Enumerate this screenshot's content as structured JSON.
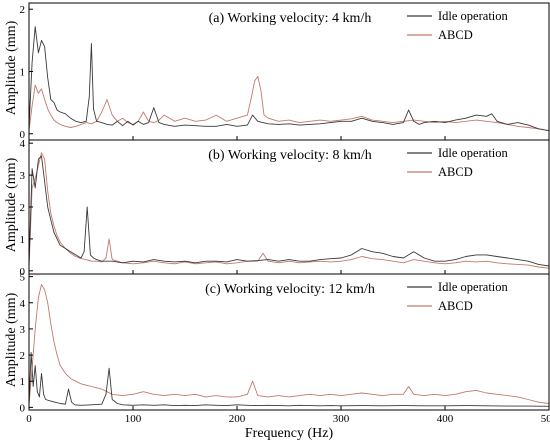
{
  "chart_data": [
    {
      "type": "line",
      "title": "(a) Working velocity: 4 km/h",
      "ylabel": "Amplitude (mm)",
      "xlabel": "",
      "xlim": [
        0,
        500
      ],
      "ylim": [
        -0.1,
        2.1
      ],
      "x_ticks": [
        0,
        100,
        200,
        300,
        400,
        500
      ],
      "y_ticks": [
        0,
        1,
        2
      ],
      "legend_position": "top-right",
      "grid": false,
      "series": [
        {
          "name": "Idle operation",
          "color": "#3a3a3a",
          "x": [
            0,
            3,
            6,
            9,
            12,
            15,
            18,
            21,
            24,
            27,
            30,
            35,
            40,
            45,
            50,
            55,
            58,
            60,
            62,
            65,
            70,
            75,
            80,
            85,
            90,
            95,
            100,
            105,
            110,
            115,
            120,
            125,
            130,
            140,
            150,
            160,
            170,
            180,
            190,
            200,
            210,
            215,
            220,
            225,
            230,
            240,
            250,
            260,
            270,
            280,
            290,
            300,
            310,
            320,
            330,
            340,
            350,
            360,
            365,
            370,
            375,
            380,
            390,
            400,
            410,
            420,
            430,
            440,
            445,
            450,
            460,
            470,
            480,
            490,
            500
          ],
          "y": [
            0.1,
            1.15,
            1.72,
            1.3,
            1.5,
            1.4,
            0.9,
            0.55,
            0.5,
            0.38,
            0.35,
            0.32,
            0.25,
            0.2,
            0.18,
            0.2,
            0.6,
            1.45,
            0.4,
            0.2,
            0.18,
            0.15,
            0.14,
            0.2,
            0.13,
            0.2,
            0.14,
            0.2,
            0.15,
            0.18,
            0.42,
            0.18,
            0.15,
            0.12,
            0.14,
            0.13,
            0.12,
            0.12,
            0.15,
            0.12,
            0.14,
            0.3,
            0.2,
            0.18,
            0.16,
            0.15,
            0.16,
            0.14,
            0.15,
            0.16,
            0.18,
            0.2,
            0.2,
            0.25,
            0.2,
            0.18,
            0.15,
            0.18,
            0.38,
            0.2,
            0.15,
            0.18,
            0.2,
            0.18,
            0.22,
            0.25,
            0.3,
            0.28,
            0.32,
            0.2,
            0.15,
            0.18,
            0.14,
            0.08,
            0.05
          ]
        },
        {
          "name": "ABCD",
          "color": "#c4796a",
          "x": [
            0,
            3,
            6,
            9,
            12,
            15,
            18,
            21,
            24,
            27,
            30,
            35,
            40,
            45,
            50,
            55,
            60,
            65,
            70,
            75,
            80,
            85,
            90,
            95,
            100,
            105,
            110,
            115,
            120,
            125,
            130,
            140,
            150,
            160,
            170,
            180,
            190,
            200,
            210,
            214,
            217,
            220,
            223,
            226,
            230,
            240,
            250,
            260,
            270,
            280,
            290,
            300,
            310,
            320,
            330,
            340,
            350,
            360,
            370,
            380,
            390,
            400,
            410,
            420,
            430,
            440,
            450,
            460,
            470,
            480,
            490,
            500
          ],
          "y": [
            0.05,
            0.45,
            0.78,
            0.65,
            0.72,
            0.55,
            0.4,
            0.3,
            0.22,
            0.18,
            0.15,
            0.12,
            0.1,
            0.12,
            0.15,
            0.18,
            0.16,
            0.2,
            0.35,
            0.55,
            0.3,
            0.2,
            0.25,
            0.18,
            0.15,
            0.2,
            0.35,
            0.2,
            0.18,
            0.22,
            0.3,
            0.2,
            0.25,
            0.2,
            0.22,
            0.3,
            0.2,
            0.25,
            0.3,
            0.6,
            0.85,
            0.92,
            0.7,
            0.3,
            0.25,
            0.2,
            0.22,
            0.18,
            0.2,
            0.22,
            0.2,
            0.22,
            0.24,
            0.28,
            0.22,
            0.2,
            0.18,
            0.2,
            0.22,
            0.2,
            0.18,
            0.2,
            0.18,
            0.2,
            0.22,
            0.2,
            0.18,
            0.15,
            0.12,
            0.1,
            0.08,
            0.05
          ]
        }
      ]
    },
    {
      "type": "line",
      "title": "(b) Working velocity: 8 km/h",
      "ylabel": "Amplitude (mm)",
      "xlabel": "",
      "xlim": [
        0,
        500
      ],
      "ylim": [
        -0.1,
        4.1
      ],
      "x_ticks": [
        0,
        100,
        200,
        300,
        400,
        500
      ],
      "y_ticks": [
        0,
        1,
        2,
        3,
        4
      ],
      "legend_position": "top-right",
      "grid": false,
      "series": [
        {
          "name": "Idle operation",
          "color": "#3a3a3a",
          "x": [
            0,
            3,
            6,
            9,
            12,
            15,
            18,
            21,
            24,
            27,
            30,
            35,
            40,
            45,
            50,
            53,
            56,
            59,
            62,
            65,
            70,
            80,
            90,
            100,
            110,
            120,
            130,
            140,
            150,
            160,
            170,
            180,
            190,
            200,
            210,
            220,
            230,
            240,
            250,
            260,
            270,
            280,
            290,
            300,
            310,
            320,
            330,
            340,
            350,
            360,
            370,
            380,
            390,
            400,
            410,
            420,
            430,
            440,
            450,
            460,
            470,
            480,
            490,
            500
          ],
          "y": [
            0.2,
            3.2,
            2.6,
            3.5,
            3.6,
            2.8,
            2.0,
            1.6,
            1.2,
            1.0,
            0.8,
            0.7,
            0.6,
            0.5,
            0.4,
            0.6,
            2.0,
            0.5,
            0.4,
            0.35,
            0.3,
            0.3,
            0.25,
            0.3,
            0.28,
            0.35,
            0.3,
            0.28,
            0.3,
            0.25,
            0.3,
            0.3,
            0.28,
            0.35,
            0.3,
            0.32,
            0.35,
            0.3,
            0.35,
            0.3,
            0.3,
            0.35,
            0.38,
            0.4,
            0.5,
            0.7,
            0.6,
            0.55,
            0.45,
            0.4,
            0.6,
            0.4,
            0.3,
            0.3,
            0.35,
            0.45,
            0.5,
            0.5,
            0.45,
            0.4,
            0.35,
            0.3,
            0.2,
            0.15
          ]
        },
        {
          "name": "ABCD",
          "color": "#c4796a",
          "x": [
            0,
            3,
            6,
            9,
            12,
            15,
            18,
            21,
            24,
            27,
            30,
            35,
            40,
            45,
            50,
            55,
            60,
            65,
            70,
            74,
            77,
            80,
            90,
            100,
            110,
            120,
            130,
            140,
            150,
            160,
            170,
            180,
            190,
            200,
            210,
            220,
            225,
            230,
            240,
            250,
            260,
            270,
            280,
            290,
            300,
            310,
            320,
            330,
            340,
            350,
            360,
            370,
            380,
            390,
            400,
            410,
            420,
            430,
            440,
            450,
            460,
            470,
            480,
            490,
            500
          ],
          "y": [
            0.1,
            2.6,
            2.9,
            3.3,
            3.7,
            3.5,
            2.5,
            1.8,
            1.4,
            1.1,
            0.9,
            0.7,
            0.55,
            0.45,
            0.38,
            0.35,
            0.3,
            0.3,
            0.28,
            0.4,
            1.0,
            0.35,
            0.25,
            0.22,
            0.25,
            0.3,
            0.25,
            0.22,
            0.28,
            0.22,
            0.25,
            0.28,
            0.22,
            0.25,
            0.3,
            0.3,
            0.55,
            0.3,
            0.25,
            0.3,
            0.25,
            0.28,
            0.3,
            0.28,
            0.3,
            0.35,
            0.45,
            0.38,
            0.35,
            0.3,
            0.25,
            0.35,
            0.3,
            0.25,
            0.22,
            0.25,
            0.3,
            0.28,
            0.3,
            0.25,
            0.22,
            0.2,
            0.18,
            0.12,
            0.08
          ]
        }
      ]
    },
    {
      "type": "line",
      "title": "(c) Working velocity: 12 km/h",
      "ylabel": "Amplitude (mm)",
      "xlabel": "Frequency (Hz)",
      "xlim": [
        0,
        500
      ],
      "ylim": [
        -0.1,
        5.1
      ],
      "x_ticks": [
        0,
        100,
        200,
        300,
        400,
        500
      ],
      "y_ticks": [
        0,
        1,
        2,
        3,
        4,
        5
      ],
      "legend_position": "top-right",
      "grid": false,
      "series": [
        {
          "name": "Idle operation",
          "color": "#3a3a3a",
          "x": [
            0,
            2,
            4,
            6,
            8,
            10,
            12,
            14,
            16,
            20,
            25,
            30,
            35,
            38,
            41,
            44,
            50,
            60,
            70,
            74,
            77,
            80,
            85,
            90,
            100,
            110,
            120,
            130,
            140,
            150,
            160,
            170,
            180,
            190,
            200,
            210,
            220,
            230,
            240,
            250,
            260,
            270,
            280,
            290,
            300,
            320,
            340,
            360,
            380,
            400,
            420,
            440,
            460,
            480,
            500
          ],
          "y": [
            0.1,
            2.1,
            0.8,
            1.6,
            0.6,
            0.4,
            1.3,
            0.5,
            0.3,
            0.25,
            0.2,
            0.15,
            0.12,
            0.7,
            0.2,
            0.1,
            0.08,
            0.1,
            0.12,
            0.5,
            1.5,
            0.3,
            0.15,
            0.1,
            0.08,
            0.1,
            0.08,
            0.1,
            0.07,
            0.08,
            0.07,
            0.1,
            0.08,
            0.07,
            0.1,
            0.08,
            0.07,
            0.08,
            0.07,
            0.06,
            0.08,
            0.07,
            0.06,
            0.07,
            0.06,
            0.07,
            0.06,
            0.07,
            0.06,
            0.06,
            0.07,
            0.06,
            0.05,
            0.05,
            0.04
          ]
        },
        {
          "name": "ABCD",
          "color": "#c4796a",
          "x": [
            0,
            3,
            6,
            9,
            12,
            15,
            18,
            21,
            24,
            27,
            30,
            35,
            40,
            45,
            50,
            55,
            60,
            65,
            70,
            75,
            80,
            90,
            100,
            110,
            120,
            130,
            140,
            150,
            160,
            170,
            180,
            190,
            200,
            210,
            215,
            220,
            230,
            240,
            250,
            260,
            270,
            280,
            290,
            300,
            310,
            320,
            330,
            340,
            350,
            360,
            365,
            370,
            380,
            390,
            400,
            410,
            420,
            430,
            440,
            450,
            460,
            470,
            480,
            490,
            500
          ],
          "y": [
            0.1,
            1.5,
            3.0,
            4.2,
            4.7,
            4.5,
            4.0,
            3.2,
            2.5,
            2.0,
            1.6,
            1.3,
            1.1,
            1.0,
            0.9,
            0.85,
            0.8,
            0.75,
            0.7,
            0.6,
            0.5,
            0.45,
            0.5,
            0.6,
            0.5,
            0.45,
            0.5,
            0.45,
            0.5,
            0.4,
            0.45,
            0.4,
            0.4,
            0.5,
            1.0,
            0.45,
            0.4,
            0.45,
            0.4,
            0.45,
            0.5,
            0.45,
            0.5,
            0.45,
            0.5,
            0.55,
            0.5,
            0.45,
            0.5,
            0.5,
            0.8,
            0.5,
            0.45,
            0.5,
            0.45,
            0.5,
            0.6,
            0.65,
            0.55,
            0.5,
            0.45,
            0.4,
            0.3,
            0.2,
            0.15
          ]
        }
      ]
    }
  ]
}
